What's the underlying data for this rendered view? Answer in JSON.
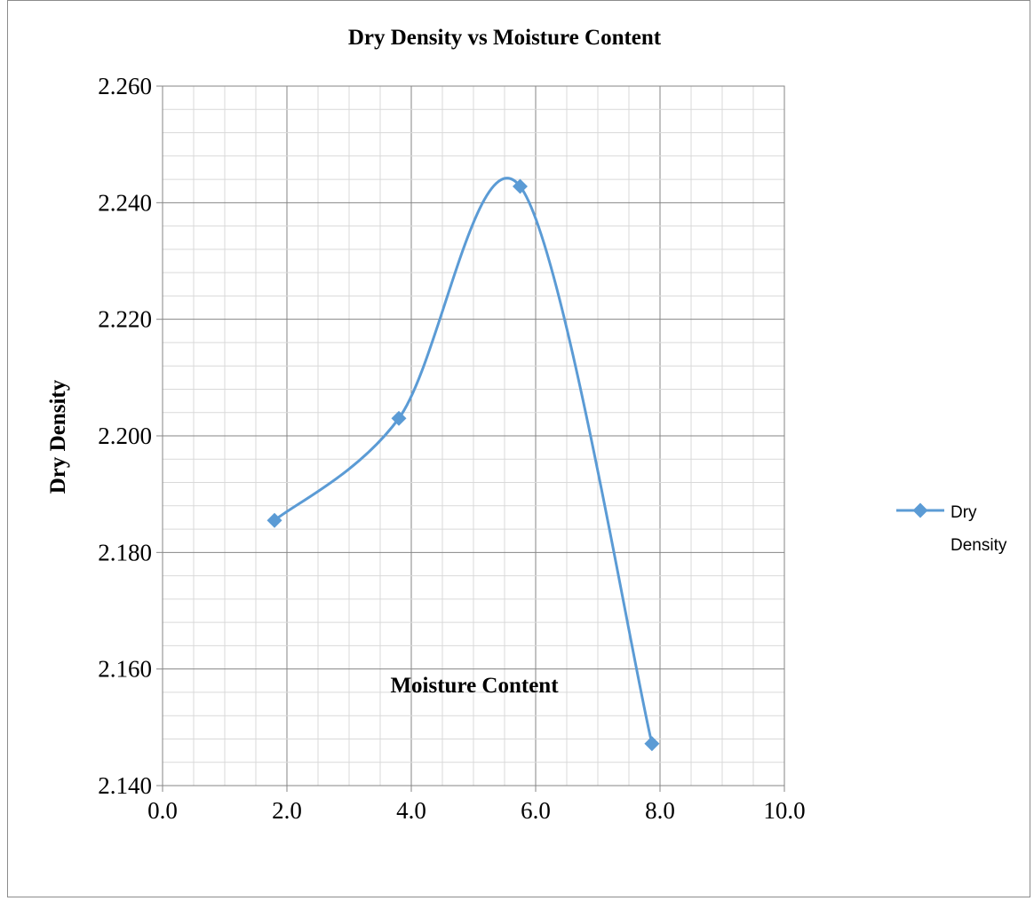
{
  "chart_data": {
    "type": "scatter",
    "title": "Dry Density vs Moisture Content",
    "xlabel": "Moisture Content",
    "ylabel": "Dry Density",
    "xlim": [
      0,
      10
    ],
    "ylim": [
      2.14,
      2.26
    ],
    "x_ticks": [
      "0.0",
      "2.0",
      "4.0",
      "6.0",
      "8.0",
      "10.0"
    ],
    "y_ticks": [
      "2.140",
      "2.160",
      "2.180",
      "2.200",
      "2.220",
      "2.240",
      "2.260"
    ],
    "grid": true,
    "legend_position": "right",
    "smooth_line": true,
    "series": [
      {
        "name": "Dry Density",
        "legend_lines": [
          "Dry",
          "Density"
        ],
        "color": "#5b9bd5",
        "marker": "diamond",
        "x": [
          1.8,
          3.8,
          5.75,
          7.87
        ],
        "y": [
          2.1855,
          2.203,
          2.2428,
          2.1472
        ]
      }
    ]
  }
}
